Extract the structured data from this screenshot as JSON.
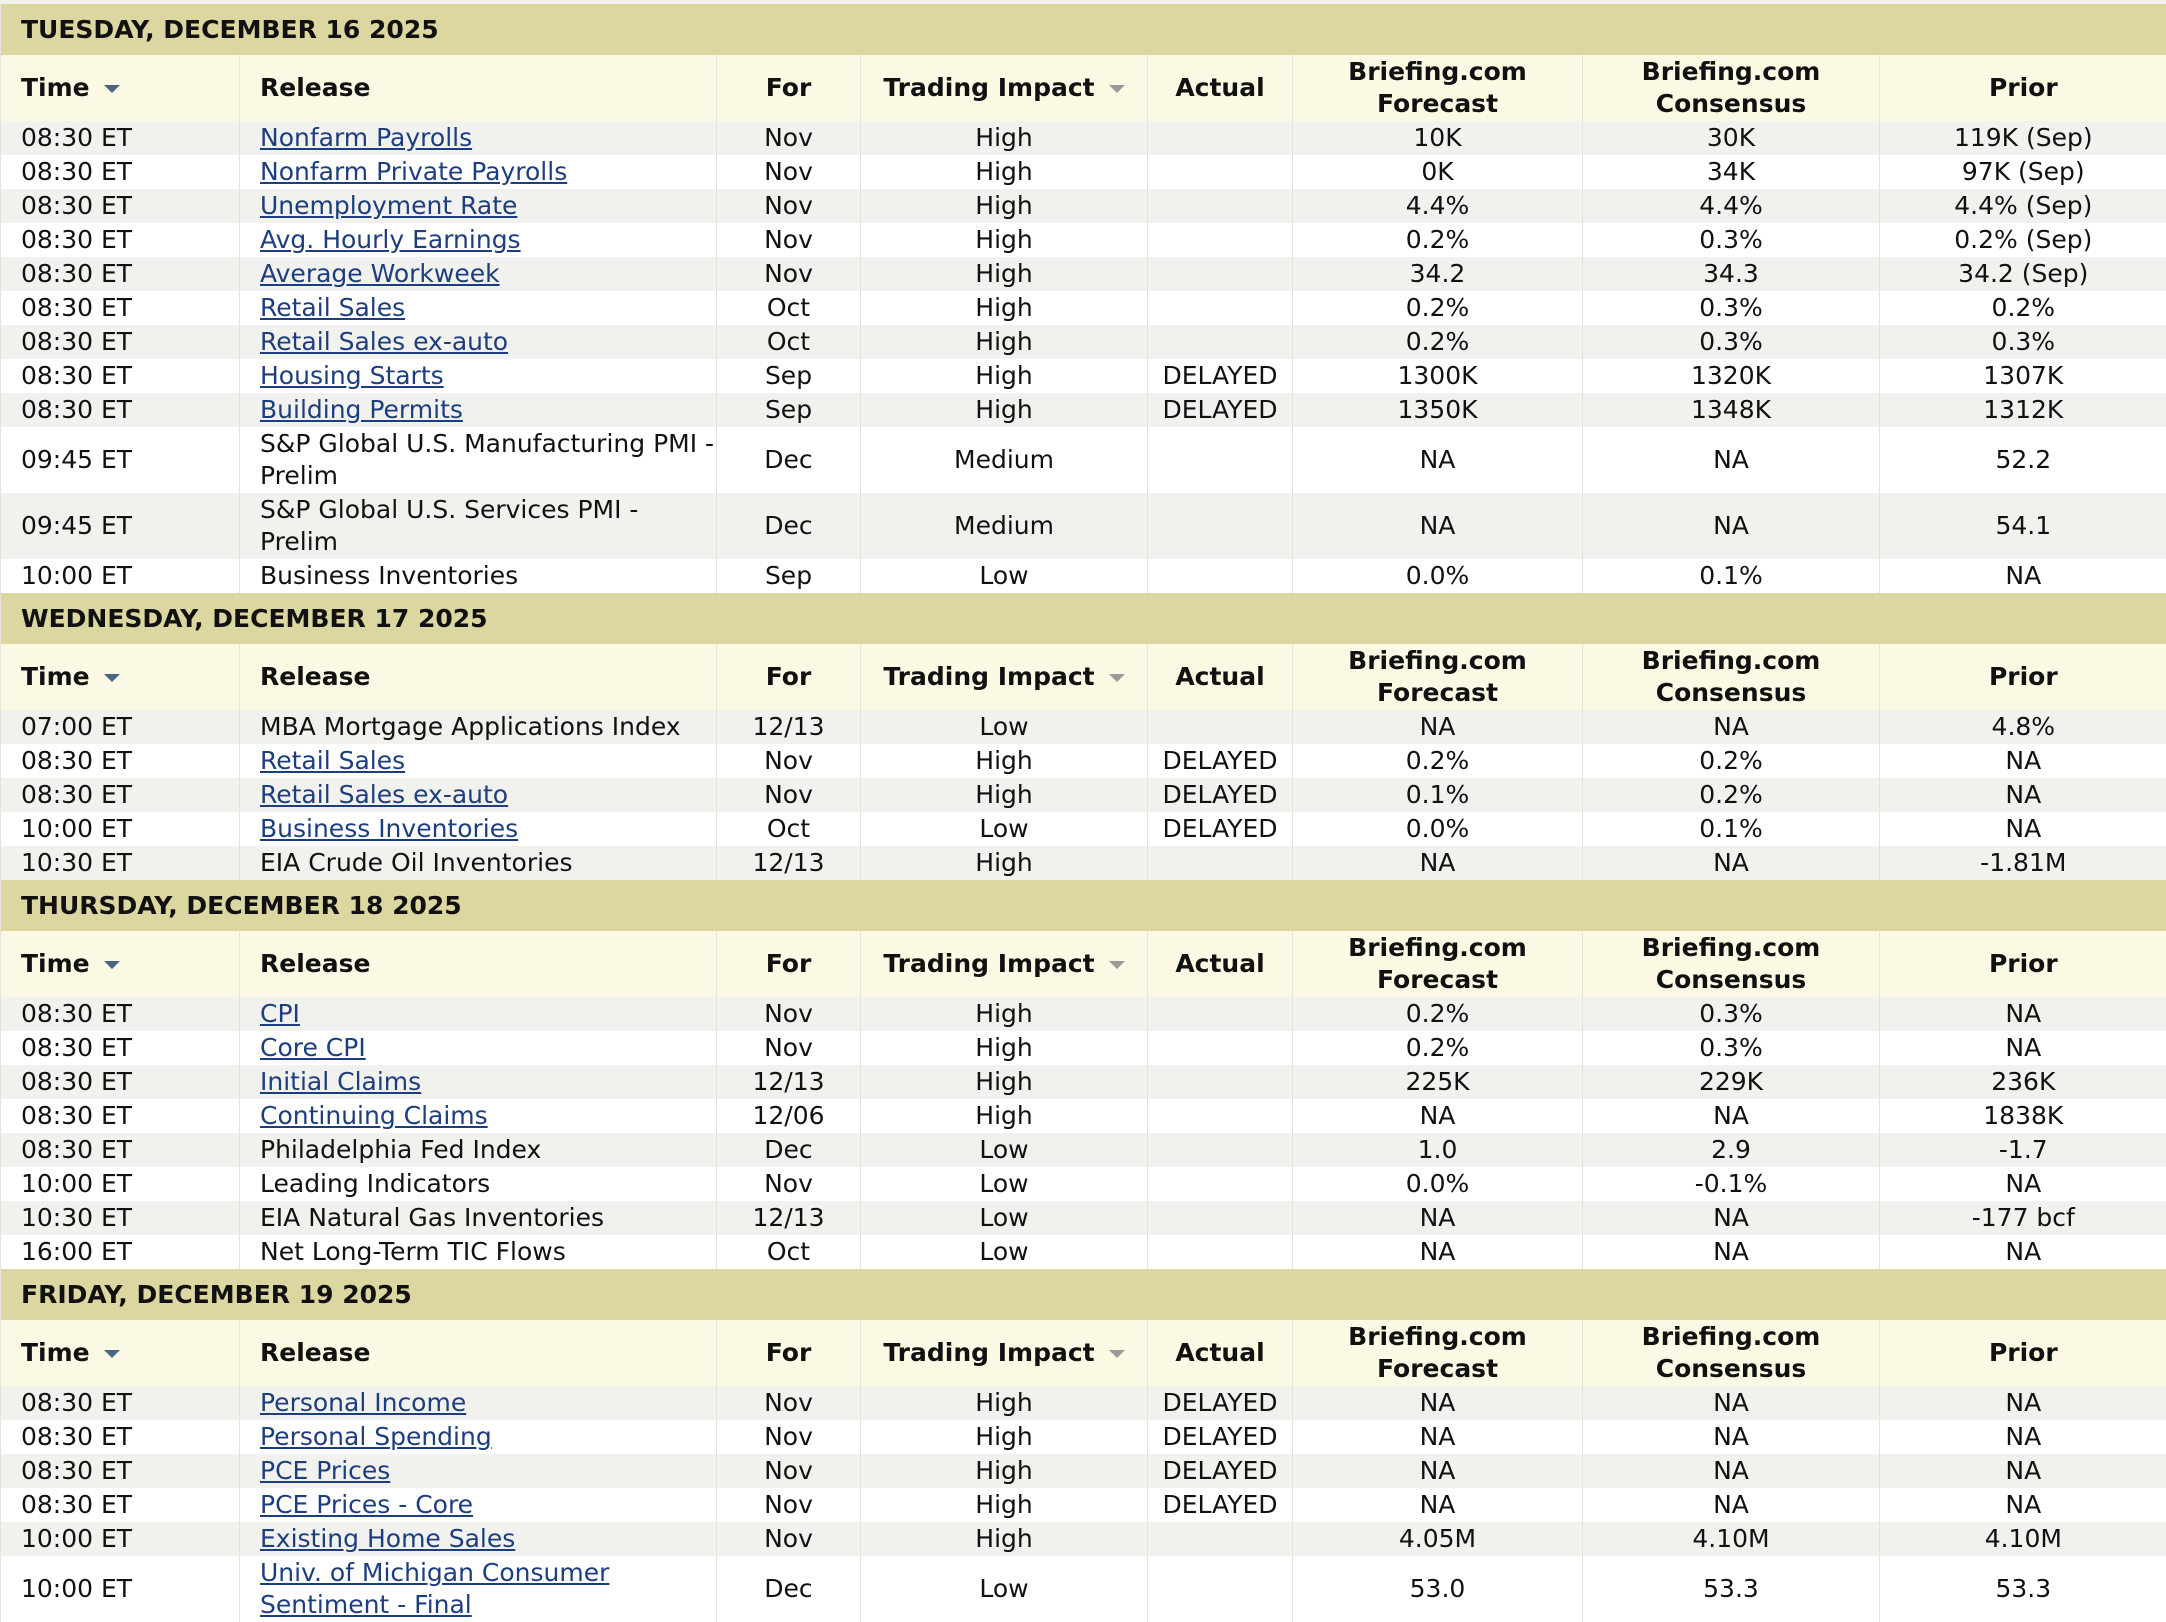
{
  "columns": [
    "Time",
    "Release",
    "For",
    "Trading Impact",
    "Actual",
    "Briefing.com Forecast",
    "Briefing.com Consensus",
    "Prior"
  ],
  "days": [
    {
      "title": "TUESDAY, DECEMBER 16 2025",
      "rows": [
        {
          "time": "08:30 ET",
          "release": "Nonfarm Payrolls",
          "link": true,
          "for": "Nov",
          "impact": "High",
          "actual": null,
          "forecast": "10K",
          "consensus": "30K",
          "prior": "119K (Sep)"
        },
        {
          "time": "08:30 ET",
          "release": "Nonfarm Private Payrolls",
          "link": true,
          "for": "Nov",
          "impact": "High",
          "actual": null,
          "forecast": "0K",
          "consensus": "34K",
          "prior": "97K (Sep)"
        },
        {
          "time": "08:30 ET",
          "release": "Unemployment Rate",
          "link": true,
          "for": "Nov",
          "impact": "High",
          "actual": null,
          "forecast": "4.4%",
          "consensus": "4.4%",
          "prior": "4.4% (Sep)"
        },
        {
          "time": "08:30 ET",
          "release": "Avg. Hourly Earnings",
          "link": true,
          "for": "Nov",
          "impact": "High",
          "actual": null,
          "forecast": "0.2%",
          "consensus": "0.3%",
          "prior": "0.2% (Sep)"
        },
        {
          "time": "08:30 ET",
          "release": "Average Workweek",
          "link": true,
          "for": "Nov",
          "impact": "High",
          "actual": null,
          "forecast": "34.2",
          "consensus": "34.3",
          "prior": "34.2 (Sep)"
        },
        {
          "time": "08:30 ET",
          "release": "Retail Sales",
          "link": true,
          "for": "Oct",
          "impact": "High",
          "actual": null,
          "forecast": "0.2%",
          "consensus": "0.3%",
          "prior": "0.2%"
        },
        {
          "time": "08:30 ET",
          "release": "Retail Sales ex-auto",
          "link": true,
          "for": "Oct",
          "impact": "High",
          "actual": null,
          "forecast": "0.2%",
          "consensus": "0.3%",
          "prior": "0.3%"
        },
        {
          "time": "08:30 ET",
          "release": "Housing Starts",
          "link": true,
          "for": "Sep",
          "impact": "High",
          "actual": "DELAYED",
          "forecast": "1300K",
          "consensus": "1320K",
          "prior": "1307K"
        },
        {
          "time": "08:30 ET",
          "release": "Building Permits",
          "link": true,
          "for": "Sep",
          "impact": "High",
          "actual": "DELAYED",
          "forecast": "1350K",
          "consensus": "1348K",
          "prior": "1312K"
        },
        {
          "time": "09:45 ET",
          "release": "S&P Global U.S. Manufacturing PMI - Prelim",
          "link": false,
          "for": "Dec",
          "impact": "Medium",
          "actual": null,
          "forecast": "NA",
          "consensus": "NA",
          "prior": "52.2"
        },
        {
          "time": "09:45 ET",
          "release": "S&P Global U.S. Services PMI - Prelim",
          "link": false,
          "for": "Dec",
          "impact": "Medium",
          "actual": null,
          "forecast": "NA",
          "consensus": "NA",
          "prior": "54.1"
        },
        {
          "time": "10:00 ET",
          "release": "Business Inventories",
          "link": false,
          "for": "Sep",
          "impact": "Low",
          "actual": null,
          "forecast": "0.0%",
          "consensus": "0.1%",
          "prior": "NA"
        }
      ]
    },
    {
      "title": "WEDNESDAY, DECEMBER 17 2025",
      "rows": [
        {
          "time": "07:00 ET",
          "release": "MBA Mortgage Applications Index",
          "link": false,
          "for": "12/13",
          "impact": "Low",
          "actual": null,
          "forecast": "NA",
          "consensus": "NA",
          "prior": "4.8%"
        },
        {
          "time": "08:30 ET",
          "release": "Retail Sales",
          "link": true,
          "for": "Nov",
          "impact": "High",
          "actual": "DELAYED",
          "forecast": "0.2%",
          "consensus": "0.2%",
          "prior": "NA"
        },
        {
          "time": "08:30 ET",
          "release": "Retail Sales ex-auto",
          "link": true,
          "for": "Nov",
          "impact": "High",
          "actual": "DELAYED",
          "forecast": "0.1%",
          "consensus": "0.2%",
          "prior": "NA"
        },
        {
          "time": "10:00 ET",
          "release": "Business Inventories",
          "link": true,
          "for": "Oct",
          "impact": "Low",
          "actual": "DELAYED",
          "forecast": "0.0%",
          "consensus": "0.1%",
          "prior": "NA"
        },
        {
          "time": "10:30 ET",
          "release": "EIA Crude Oil Inventories",
          "link": false,
          "for": "12/13",
          "impact": "High",
          "actual": null,
          "forecast": "NA",
          "consensus": "NA",
          "prior": "-1.81M"
        }
      ]
    },
    {
      "title": "THURSDAY, DECEMBER 18 2025",
      "rows": [
        {
          "time": "08:30 ET",
          "release": "CPI",
          "link": true,
          "for": "Nov",
          "impact": "High",
          "actual": null,
          "forecast": "0.2%",
          "consensus": "0.3%",
          "prior": "NA"
        },
        {
          "time": "08:30 ET",
          "release": "Core CPI",
          "link": true,
          "for": "Nov",
          "impact": "High",
          "actual": null,
          "forecast": "0.2%",
          "consensus": "0.3%",
          "prior": "NA"
        },
        {
          "time": "08:30 ET",
          "release": "Initial Claims",
          "link": true,
          "for": "12/13",
          "impact": "High",
          "actual": null,
          "forecast": "225K",
          "consensus": "229K",
          "prior": "236K"
        },
        {
          "time": "08:30 ET",
          "release": "Continuing Claims",
          "link": true,
          "for": "12/06",
          "impact": "High",
          "actual": null,
          "forecast": "NA",
          "consensus": "NA",
          "prior": "1838K"
        },
        {
          "time": "08:30 ET",
          "release": "Philadelphia Fed Index",
          "link": false,
          "for": "Dec",
          "impact": "Low",
          "actual": null,
          "forecast": "1.0",
          "consensus": "2.9",
          "prior": "-1.7"
        },
        {
          "time": "10:00 ET",
          "release": "Leading Indicators",
          "link": false,
          "for": "Nov",
          "impact": "Low",
          "actual": null,
          "forecast": "0.0%",
          "consensus": "-0.1%",
          "prior": "NA"
        },
        {
          "time": "10:30 ET",
          "release": "EIA Natural Gas Inventories",
          "link": false,
          "for": "12/13",
          "impact": "Low",
          "actual": null,
          "forecast": "NA",
          "consensus": "NA",
          "prior": "-177 bcf"
        },
        {
          "time": "16:00 ET",
          "release": "Net Long-Term TIC Flows",
          "link": false,
          "for": "Oct",
          "impact": "Low",
          "actual": null,
          "forecast": "NA",
          "consensus": "NA",
          "prior": "NA"
        }
      ]
    },
    {
      "title": "FRIDAY, DECEMBER 19 2025",
      "rows": [
        {
          "time": "08:30 ET",
          "release": "Personal Income",
          "link": true,
          "for": "Nov",
          "impact": "High",
          "actual": "DELAYED",
          "forecast": "NA",
          "consensus": "NA",
          "prior": "NA"
        },
        {
          "time": "08:30 ET",
          "release": "Personal Spending",
          "link": true,
          "for": "Nov",
          "impact": "High",
          "actual": "DELAYED",
          "forecast": "NA",
          "consensus": "NA",
          "prior": "NA"
        },
        {
          "time": "08:30 ET",
          "release": "PCE Prices",
          "link": true,
          "for": "Nov",
          "impact": "High",
          "actual": "DELAYED",
          "forecast": "NA",
          "consensus": "NA",
          "prior": "NA"
        },
        {
          "time": "08:30 ET",
          "release": "PCE Prices - Core",
          "link": true,
          "for": "Nov",
          "impact": "High",
          "actual": "DELAYED",
          "forecast": "NA",
          "consensus": "NA",
          "prior": "NA"
        },
        {
          "time": "10:00 ET",
          "release": "Existing Home Sales",
          "link": true,
          "for": "Nov",
          "impact": "High",
          "actual": null,
          "forecast": "4.05M",
          "consensus": "4.10M",
          "prior": "4.10M"
        },
        {
          "time": "10:00 ET",
          "release": "Univ. of Michigan Consumer Sentiment - Final",
          "link": true,
          "for": "Dec",
          "impact": "Low",
          "actual": null,
          "forecast": "53.0",
          "consensus": "53.3",
          "prior": "53.3"
        }
      ]
    }
  ]
}
